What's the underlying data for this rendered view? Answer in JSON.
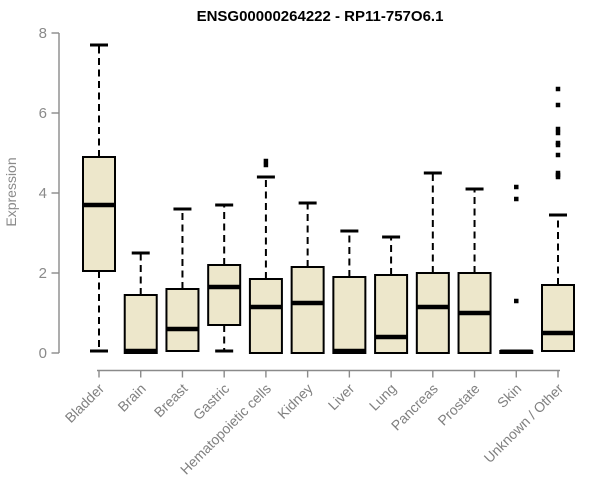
{
  "chart_data": {
    "type": "boxplot",
    "title": "ENSG00000264222 - RP11-757O6.1",
    "xlabel": "",
    "ylabel": "Expression",
    "ylim": [
      0,
      8
    ],
    "yticks": [
      0,
      2,
      4,
      6,
      8
    ],
    "grid": false,
    "legend": "none",
    "categories": [
      "Bladder",
      "Brain",
      "Breast",
      "Gastric",
      "Hematopoietic cells",
      "Kidney",
      "Liver",
      "Lung",
      "Pancreas",
      "Prostate",
      "Skin",
      "Unknown / Other"
    ],
    "series": [
      {
        "name": "Bladder",
        "min": 0.05,
        "q1": 2.05,
        "median": 3.7,
        "q3": 4.9,
        "max": 7.7,
        "outliers": []
      },
      {
        "name": "Brain",
        "min": 0,
        "q1": 0,
        "median": 0.05,
        "q3": 1.45,
        "max": 2.5,
        "outliers": []
      },
      {
        "name": "Breast",
        "min": 0.05,
        "q1": 0.05,
        "median": 0.6,
        "q3": 1.6,
        "max": 3.6,
        "outliers": []
      },
      {
        "name": "Gastric",
        "min": 0.05,
        "q1": 0.7,
        "median": 1.65,
        "q3": 2.2,
        "max": 3.7,
        "outliers": []
      },
      {
        "name": "Hematopoietic cells",
        "min": 0,
        "q1": 0,
        "median": 1.15,
        "q3": 1.85,
        "max": 4.4,
        "outliers": [
          4.8,
          4.7
        ]
      },
      {
        "name": "Kidney",
        "min": 0,
        "q1": 0,
        "median": 1.25,
        "q3": 2.15,
        "max": 3.75,
        "outliers": []
      },
      {
        "name": "Liver",
        "min": 0,
        "q1": 0,
        "median": 0.05,
        "q3": 1.9,
        "max": 3.05,
        "outliers": []
      },
      {
        "name": "Lung",
        "min": 0,
        "q1": 0,
        "median": 0.4,
        "q3": 1.95,
        "max": 2.9,
        "outliers": []
      },
      {
        "name": "Pancreas",
        "min": 0,
        "q1": 0,
        "median": 1.15,
        "q3": 2.0,
        "max": 4.5,
        "outliers": []
      },
      {
        "name": "Prostate",
        "min": 0,
        "q1": 0,
        "median": 1.0,
        "q3": 2.0,
        "max": 4.1,
        "outliers": []
      },
      {
        "name": "Skin",
        "min": 0,
        "q1": 0,
        "median": 0.03,
        "q3": 0.05,
        "max": 0.05,
        "outliers": [
          4.15,
          3.85,
          1.3
        ]
      },
      {
        "name": "Unknown / Other",
        "min": 0.05,
        "q1": 0.05,
        "median": 0.5,
        "q3": 1.7,
        "max": 3.45,
        "outliers": [
          6.6,
          6.2,
          5.6,
          5.5,
          5.25,
          5.2,
          4.95,
          4.5,
          4.45,
          4.4
        ]
      }
    ],
    "colors": {
      "background": "#FFFFFF",
      "box_fill": "#EDE7CB",
      "box_border": "#000000",
      "median": "#000000",
      "whisker": "#000000",
      "outlier": "#000000",
      "axis": "#8A8A8A",
      "tick_label": "#8A8A8A",
      "category_label": "#808080",
      "title": "#000000"
    }
  }
}
